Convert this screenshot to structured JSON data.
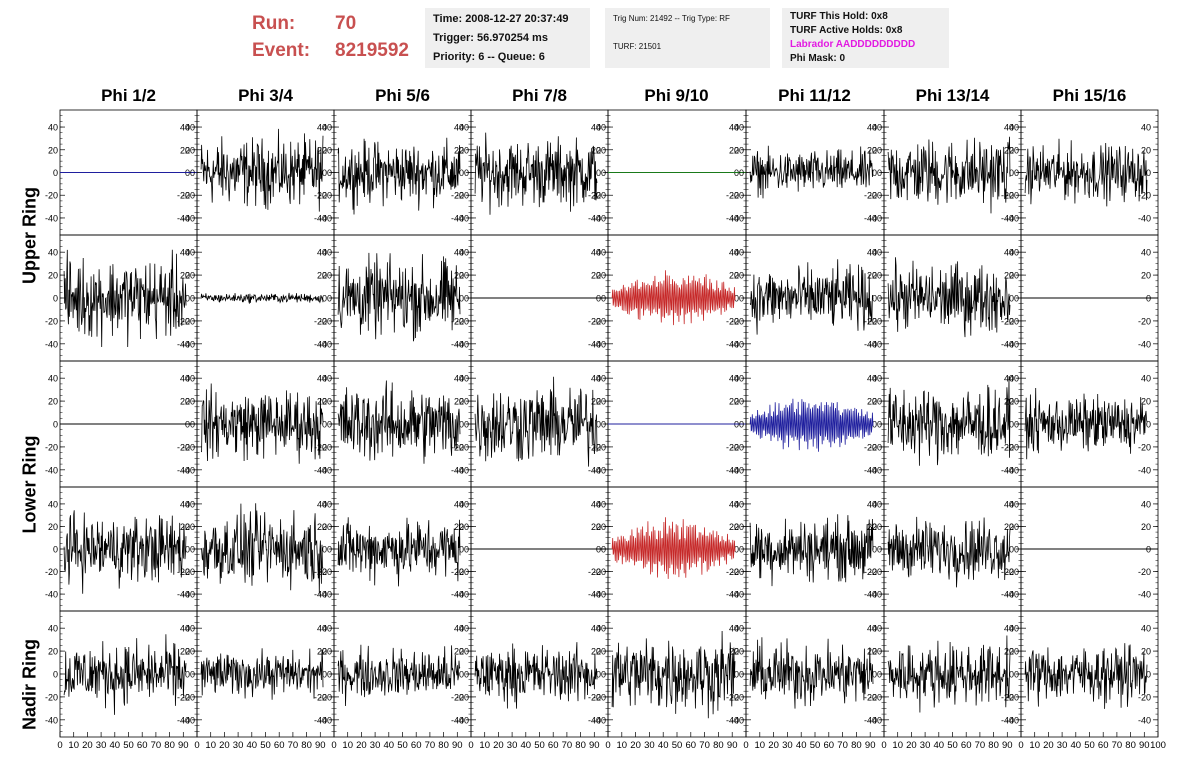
{
  "run": {
    "run_label": "Run:",
    "run_value": "70",
    "event_label": "Event:",
    "event_value": "8219592"
  },
  "info1": {
    "time": "Time: 2008-12-27 20:37:49",
    "trigger": "Trigger: 56.970254 ms",
    "priority": "Priority: 6 -- Queue: 6"
  },
  "info2": {
    "trig": "Trig Num: 21492 -- Trig Type: RF",
    "turf": "TURF: 21501"
  },
  "info3": {
    "this_hold": "TURF This Hold: 0x8",
    "active_holds": "TURF Active Holds: 0x8",
    "labrador": "Labrador AADDDDDDDDD",
    "phi_mask": "Phi Mask: 0"
  },
  "columns": [
    "Phi 1/2",
    "Phi 3/4",
    "Phi 5/6",
    "Phi 7/8",
    "Phi 9/10",
    "Phi 11/12",
    "Phi 13/14",
    "Phi 15/16"
  ],
  "rings": [
    "Upper Ring",
    "Lower Ring",
    "Nadir Ring"
  ],
  "chart_data": {
    "type": "line",
    "xlim": [
      0,
      100
    ],
    "ylim": [
      -55,
      55
    ],
    "yticks": [
      -40,
      -20,
      0,
      20,
      40
    ],
    "xtick_labels": [
      "0",
      "10",
      "20",
      "30",
      "40",
      "50",
      "60",
      "70",
      "80",
      "90",
      "100"
    ],
    "colors": {
      "black": "#000000",
      "blue": "#1f1f9e",
      "green": "#1a7a1a",
      "red": "#c62828"
    },
    "panels": [
      [
        {
          "kind": "flat",
          "color": "blue"
        },
        {
          "kind": "noise",
          "amp": 22,
          "color": "black"
        },
        {
          "kind": "noise",
          "amp": 20,
          "color": "black"
        },
        {
          "kind": "noise",
          "amp": 22,
          "color": "black"
        },
        {
          "kind": "flat",
          "color": "green"
        },
        {
          "kind": "noise",
          "amp": 14,
          "color": "black"
        },
        {
          "kind": "noise",
          "amp": 22,
          "color": "black"
        },
        {
          "kind": "noise",
          "amp": 18,
          "color": "black"
        }
      ],
      [
        {
          "kind": "noise",
          "amp": 26,
          "color": "black"
        },
        {
          "kind": "noise",
          "amp": 3,
          "color": "black"
        },
        {
          "kind": "noise",
          "amp": 25,
          "color": "black"
        },
        {
          "kind": "flat",
          "color": "black"
        },
        {
          "kind": "noise",
          "amp": 24,
          "color": "red"
        },
        {
          "kind": "noise",
          "amp": 20,
          "color": "black"
        },
        {
          "kind": "noise",
          "amp": 22,
          "color": "black"
        },
        {
          "kind": "flat",
          "color": "black"
        }
      ],
      [
        {
          "kind": "flat",
          "color": "black"
        },
        {
          "kind": "noise",
          "amp": 22,
          "color": "black"
        },
        {
          "kind": "noise",
          "amp": 24,
          "color": "black"
        },
        {
          "kind": "noise",
          "amp": 25,
          "color": "black"
        },
        {
          "kind": "flat",
          "color": "blue"
        },
        {
          "kind": "noise",
          "amp": 24,
          "color": "blue"
        },
        {
          "kind": "noise",
          "amp": 24,
          "color": "black"
        },
        {
          "kind": "noise",
          "amp": 18,
          "color": "black"
        }
      ],
      [
        {
          "kind": "noise",
          "amp": 22,
          "color": "black"
        },
        {
          "kind": "noise",
          "amp": 24,
          "color": "black"
        },
        {
          "kind": "noise",
          "amp": 20,
          "color": "black"
        },
        {
          "kind": "flat",
          "color": "black"
        },
        {
          "kind": "noise",
          "amp": 26,
          "color": "red"
        },
        {
          "kind": "noise",
          "amp": 20,
          "color": "black"
        },
        {
          "kind": "noise",
          "amp": 20,
          "color": "black"
        },
        {
          "kind": "flat",
          "color": "black"
        }
      ],
      [
        {
          "kind": "noise",
          "amp": 20,
          "color": "black"
        },
        {
          "kind": "noise",
          "amp": 14,
          "color": "black"
        },
        {
          "kind": "noise",
          "amp": 16,
          "color": "black"
        },
        {
          "kind": "noise",
          "amp": 18,
          "color": "black"
        },
        {
          "kind": "noise",
          "amp": 24,
          "color": "black"
        },
        {
          "kind": "noise",
          "amp": 20,
          "color": "black"
        },
        {
          "kind": "noise",
          "amp": 20,
          "color": "black"
        },
        {
          "kind": "noise",
          "amp": 18,
          "color": "black"
        }
      ]
    ]
  }
}
